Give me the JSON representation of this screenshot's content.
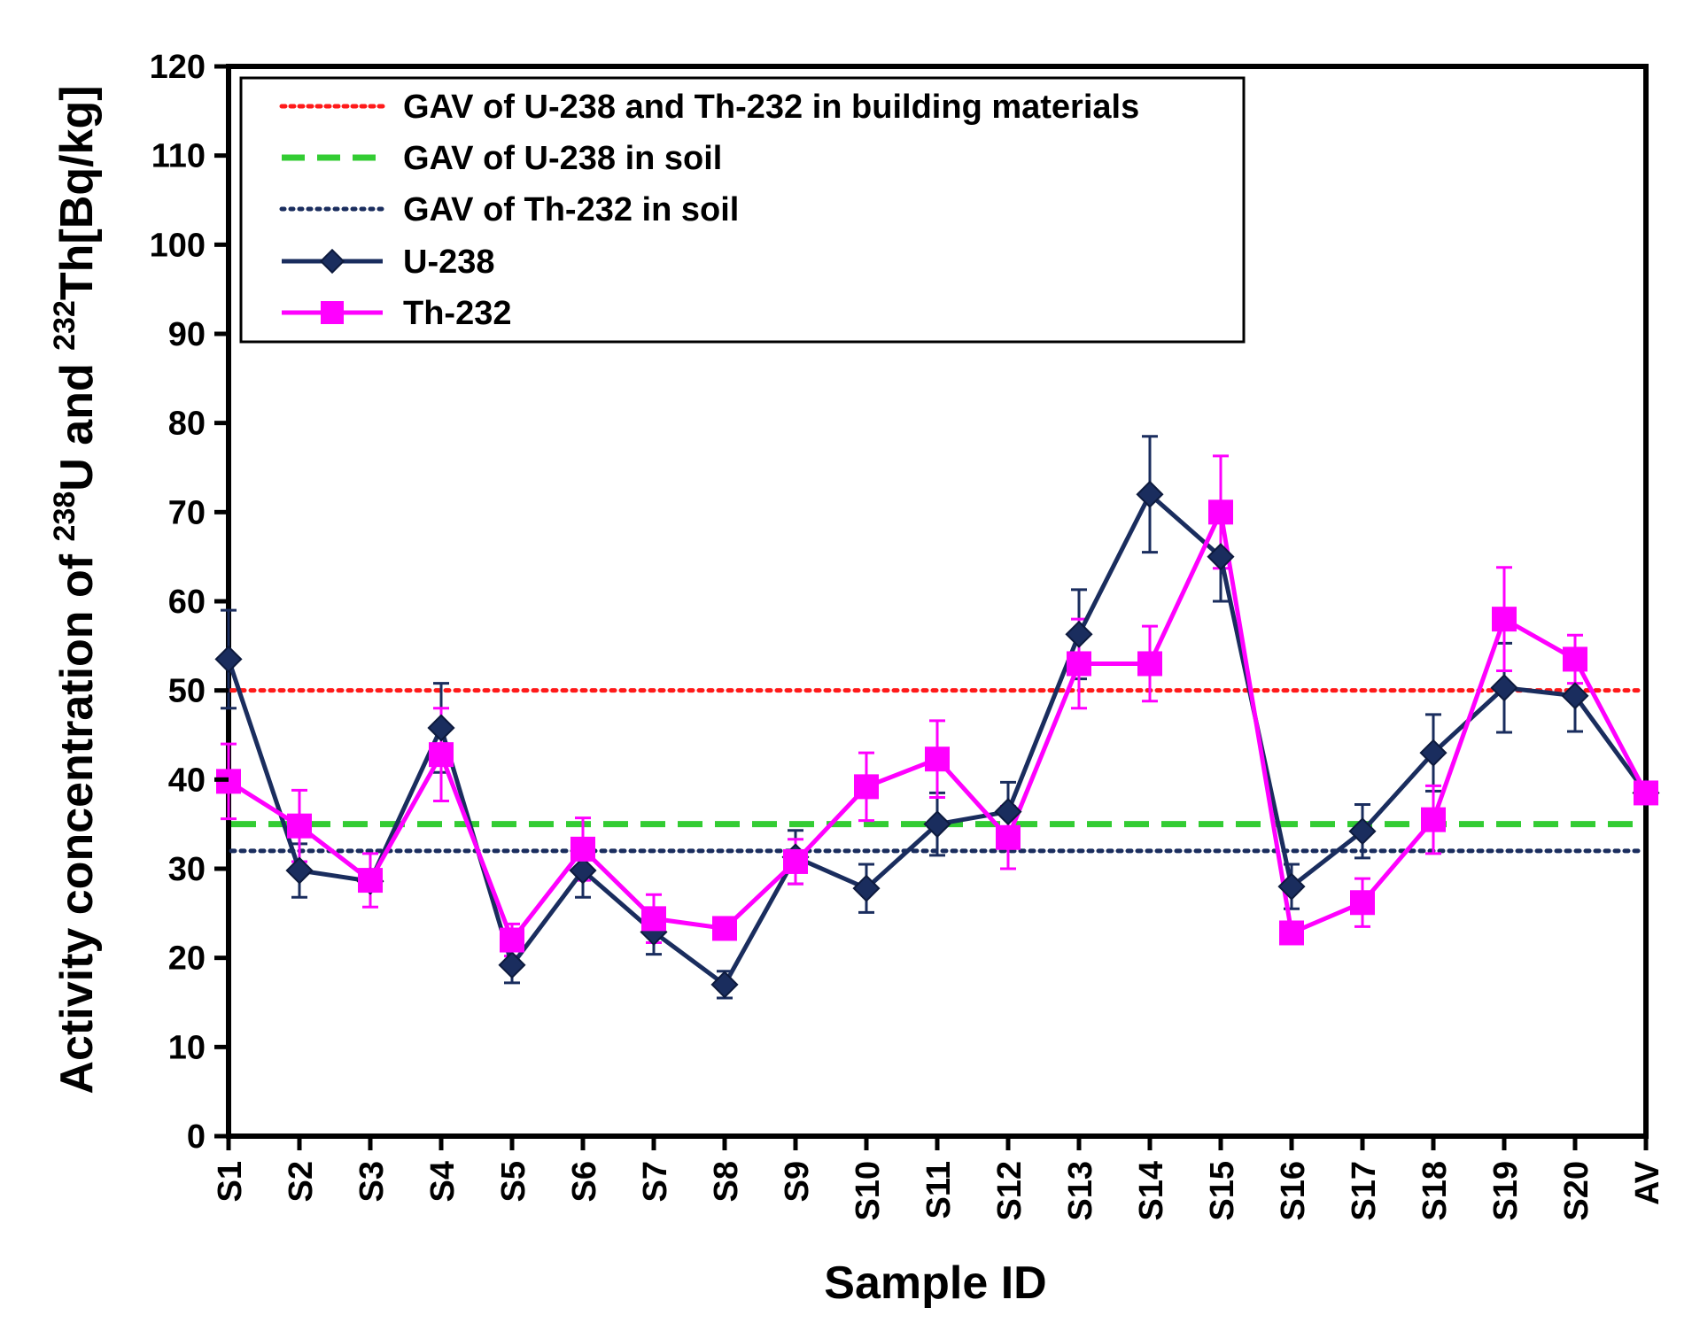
{
  "chart_data": {
    "type": "line",
    "title": "",
    "xlabel": "Sample ID",
    "ylabel": {
      "prefix": "Activity concentration of ",
      "sup1": "238",
      "mid": "U and ",
      "sup2": "232",
      "suffix": "Th[Bq/kg]"
    },
    "ylim": [
      0,
      120
    ],
    "yticks": [
      0,
      10,
      20,
      30,
      40,
      50,
      60,
      70,
      80,
      90,
      100,
      110,
      120
    ],
    "grid": false,
    "legend_position": "top-left",
    "categories": [
      "S1",
      "S2",
      "S3",
      "S4",
      "S5",
      "S6",
      "S7",
      "S8",
      "S9",
      "S10",
      "S11",
      "S12",
      "S13",
      "S14",
      "S15",
      "S16",
      "S17",
      "S18",
      "S19",
      "S20",
      "AV"
    ],
    "series": [
      {
        "name": "U-238",
        "color": "#1a2d5e",
        "marker": "diamond",
        "values": [
          53.5,
          29.8,
          28.6,
          45.8,
          19.2,
          29.8,
          22.9,
          17.0,
          31.3,
          27.8,
          35.0,
          36.4,
          56.3,
          72.0,
          65.0,
          28.0,
          34.2,
          43.0,
          50.3,
          49.4,
          38.5
        ],
        "errors": [
          5.5,
          3.0,
          null,
          5.0,
          2.0,
          3.0,
          2.5,
          1.5,
          3.0,
          2.7,
          3.5,
          3.3,
          5.0,
          6.5,
          5.0,
          2.5,
          3.0,
          4.3,
          5.0,
          4.0,
          null
        ]
      },
      {
        "name": "Th-232",
        "color": "#ff00ff",
        "marker": "square",
        "values": [
          39.8,
          34.8,
          28.7,
          42.8,
          22.0,
          32.2,
          24.4,
          23.3,
          30.8,
          39.2,
          42.3,
          33.5,
          53.0,
          53.0,
          70.0,
          22.8,
          26.2,
          35.5,
          58.0,
          53.5,
          38.5
        ],
        "errors": [
          4.2,
          4.0,
          3.0,
          5.2,
          1.8,
          3.5,
          2.7,
          null,
          2.5,
          3.8,
          4.3,
          3.5,
          5.0,
          4.2,
          6.3,
          null,
          2.7,
          3.8,
          5.8,
          2.7,
          null
        ]
      }
    ],
    "reference_lines": [
      {
        "name": "GAV of U-238 and Th-232 in building materials",
        "value": 50,
        "color": "#ff1a1a",
        "style": "dotted"
      },
      {
        "name": "GAV of U-238 in soil",
        "value": 35,
        "color": "#33cc33",
        "style": "dashed"
      },
      {
        "name": "GAV of Th-232 in soil",
        "value": 32,
        "color": "#1a2d5e",
        "style": "dotted"
      }
    ]
  }
}
